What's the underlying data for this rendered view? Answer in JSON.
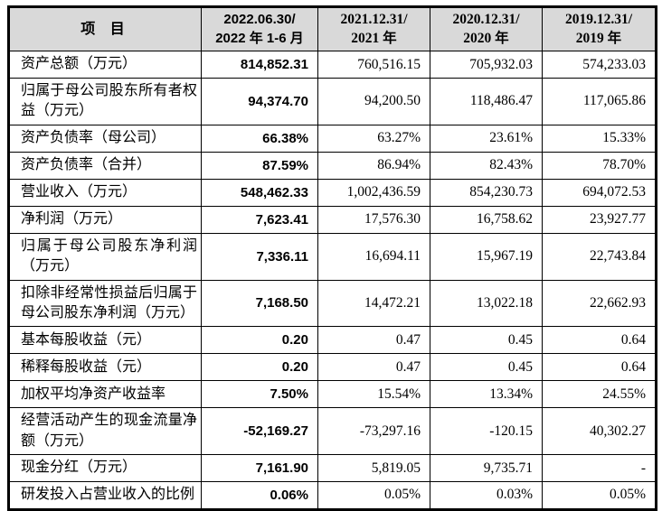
{
  "document": {
    "type": "financial-summary-table",
    "colors": {
      "header_background": "#d9d9d9",
      "border": "#000000",
      "text": "#000000",
      "page_background": "#ffffff"
    }
  },
  "table": {
    "header": {
      "item_label": "项 目",
      "periods": [
        {
          "line1": "2022.06.30/",
          "line2": "2022 年 1-6 月"
        },
        {
          "line1": "2021.12.31/",
          "line2": "2021 年"
        },
        {
          "line1": "2020.12.31/",
          "line2": "2020 年"
        },
        {
          "line1": "2019.12.31/",
          "line2": "2019 年"
        }
      ]
    },
    "rows": [
      {
        "label": "资产总额（万元）",
        "values": [
          "814,852.31",
          "760,516.15",
          "705,932.03",
          "574,233.03"
        ]
      },
      {
        "label": "归属于母公司股东所有者权益（万元）",
        "values": [
          "94,374.70",
          "94,200.50",
          "118,486.47",
          "117,065.86"
        ]
      },
      {
        "label": "资产负债率（母公司）",
        "values": [
          "66.38%",
          "63.27%",
          "23.61%",
          "15.33%"
        ]
      },
      {
        "label": "资产负债率（合并）",
        "values": [
          "87.59%",
          "86.94%",
          "82.43%",
          "78.70%"
        ]
      },
      {
        "label": "营业收入（万元）",
        "values": [
          "548,462.33",
          "1,002,436.59",
          "854,230.73",
          "694,072.53"
        ]
      },
      {
        "label": "净利润（万元）",
        "values": [
          "7,623.41",
          "17,576.30",
          "16,758.62",
          "23,927.77"
        ]
      },
      {
        "label": "归属于母公司股东净利润（万元）",
        "values": [
          "7,336.11",
          "16,694.11",
          "15,967.19",
          "22,743.84"
        ]
      },
      {
        "label": "扣除非经常性损益后归属于母公司股东净利润（万元）",
        "values": [
          "7,168.50",
          "14,472.21",
          "13,022.18",
          "22,662.93"
        ]
      },
      {
        "label": "基本每股收益（元）",
        "values": [
          "0.20",
          "0.47",
          "0.45",
          "0.64"
        ]
      },
      {
        "label": "稀释每股收益（元）",
        "values": [
          "0.20",
          "0.47",
          "0.45",
          "0.64"
        ]
      },
      {
        "label": "加权平均净资产收益率",
        "values": [
          "7.50%",
          "15.54%",
          "13.34%",
          "24.55%"
        ]
      },
      {
        "label": "经营活动产生的现金流量净额（万元）",
        "values": [
          "-52,169.27",
          "-73,297.16",
          "-120.15",
          "40,302.27"
        ]
      },
      {
        "label": "现金分红（万元）",
        "values": [
          "7,161.90",
          "5,819.05",
          "9,735.71",
          "-"
        ]
      },
      {
        "label": "研发投入占营业收入的比例",
        "values": [
          "0.06%",
          "0.05%",
          "0.03%",
          "0.05%"
        ]
      }
    ]
  }
}
